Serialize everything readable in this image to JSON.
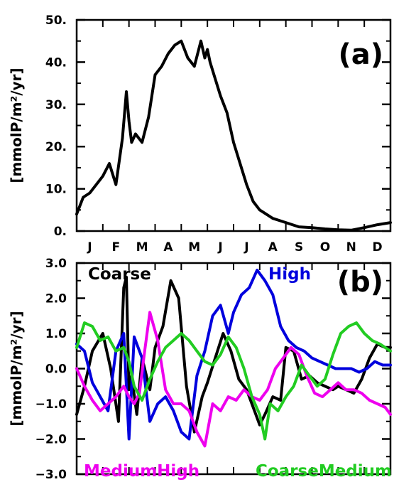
{
  "chart_data": [
    {
      "type": "line",
      "panel_label": "(a)",
      "ylabel": "[mmolP/m²/yr]",
      "xlabel": "",
      "categories": [
        "J",
        "F",
        "M",
        "A",
        "M",
        "J",
        "J",
        "A",
        "S",
        "O",
        "N",
        "D"
      ],
      "yticks": [
        "0.",
        "10.",
        "20.",
        "30.",
        "40.",
        "50."
      ],
      "ylim": [
        0,
        50
      ],
      "xlim": [
        0,
        12
      ],
      "grid": false,
      "series": [
        {
          "color": "#000000",
          "x": [
            0,
            0.25,
            0.5,
            0.75,
            1,
            1.25,
            1.5,
            1.75,
            1.9,
            2.0,
            2.1,
            2.25,
            2.5,
            2.75,
            3,
            3.25,
            3.5,
            3.75,
            4,
            4.25,
            4.5,
            4.75,
            4.9,
            5.0,
            5.1,
            5.25,
            5.5,
            5.75,
            6,
            6.25,
            6.5,
            6.75,
            7,
            7.25,
            7.5,
            7.75,
            8,
            8.5,
            9,
            9.5,
            10,
            10.5,
            11,
            11.5,
            12
          ],
          "values": [
            4,
            8,
            9,
            11,
            13,
            16,
            11,
            22,
            33,
            26,
            21,
            23,
            21,
            27,
            37,
            39,
            42,
            44,
            45,
            41,
            39,
            45,
            41,
            43,
            40,
            37,
            32,
            28,
            21,
            16,
            11,
            7,
            5,
            4,
            3,
            2.5,
            2,
            1,
            0.8,
            0.5,
            0.3,
            0.2,
            0.8,
            1.5,
            2
          ]
        }
      ]
    },
    {
      "type": "line",
      "panel_label": "(b)",
      "ylabel": "[mmolP/m²/yr]",
      "xlabel": "",
      "categories": [
        "J",
        "F",
        "M",
        "A",
        "M",
        "J",
        "J",
        "A",
        "S",
        "O",
        "N",
        "D"
      ],
      "yticks": [
        "−3.0",
        "−2.0",
        "−1.0",
        "0.0",
        "1.0",
        "2.0",
        "3.0"
      ],
      "ylim": [
        -3,
        3
      ],
      "xlim": [
        0,
        12
      ],
      "grid": false,
      "series": [
        {
          "name": "Coarse",
          "color": "#000000",
          "x": [
            0,
            0.3,
            0.6,
            1,
            1.3,
            1.6,
            1.8,
            1.9,
            2.0,
            2.1,
            2.3,
            2.5,
            2.8,
            3,
            3.3,
            3.6,
            3.9,
            4.2,
            4.5,
            4.8,
            5,
            5.3,
            5.6,
            5.9,
            6.2,
            6.5,
            6.8,
            7.0,
            7.2,
            7.5,
            7.8,
            8,
            8.3,
            8.6,
            8.9,
            9.2,
            9.5,
            9.8,
            10,
            10.3,
            10.6,
            10.9,
            11.2,
            11.5,
            11.8,
            12
          ],
          "values": [
            -1.3,
            -0.5,
            0.5,
            1.0,
            0,
            -1.5,
            2.3,
            2.6,
            -0.6,
            -0.2,
            -1.3,
            0.3,
            -0.6,
            0.6,
            1.2,
            2.5,
            2.0,
            -0.5,
            -1.8,
            -0.8,
            -0.4,
            0.3,
            1.0,
            0.5,
            -0.3,
            -0.6,
            -1.2,
            -1.6,
            -1.3,
            -0.8,
            -0.9,
            0.6,
            0.5,
            -0.3,
            -0.2,
            -0.4,
            -0.5,
            -0.6,
            -0.5,
            -0.6,
            -0.7,
            -0.3,
            0.3,
            0.7,
            0.6,
            0.6
          ]
        },
        {
          "name": "High",
          "color": "#0000dd",
          "x": [
            0,
            0.3,
            0.6,
            0.9,
            1.2,
            1.5,
            1.8,
            2.0,
            2.2,
            2.5,
            2.8,
            3.1,
            3.4,
            3.7,
            4.0,
            4.3,
            4.6,
            4.9,
            5.2,
            5.5,
            5.8,
            6.0,
            6.3,
            6.6,
            6.9,
            7.2,
            7.5,
            7.8,
            8.1,
            8.4,
            8.7,
            9.0,
            9.3,
            9.6,
            9.9,
            10.2,
            10.5,
            10.8,
            11.1,
            11.4,
            11.7,
            12
          ],
          "values": [
            0.7,
            0.5,
            -0.4,
            -0.8,
            -1.2,
            0.5,
            1.0,
            -2.0,
            0.9,
            0.3,
            -1.5,
            -1.0,
            -0.8,
            -1.2,
            -1.8,
            -2.0,
            -0.2,
            0.5,
            1.5,
            1.8,
            1.0,
            1.6,
            2.1,
            2.3,
            2.8,
            2.5,
            2.1,
            1.2,
            0.8,
            0.6,
            0.5,
            0.3,
            0.2,
            0.1,
            0.0,
            0.0,
            0.0,
            -0.1,
            0.0,
            0.2,
            0.1,
            0.1
          ]
        },
        {
          "name": "MediumHigh",
          "color": "#ee00ee",
          "x": [
            0,
            0.3,
            0.6,
            0.9,
            1.2,
            1.5,
            1.8,
            2.0,
            2.2,
            2.4,
            2.6,
            2.8,
            3.1,
            3.4,
            3.7,
            4.0,
            4.3,
            4.6,
            4.9,
            5.2,
            5.5,
            5.8,
            6.1,
            6.4,
            6.7,
            7.0,
            7.3,
            7.6,
            7.9,
            8.2,
            8.5,
            8.8,
            9.1,
            9.4,
            9.7,
            10,
            10.3,
            10.6,
            10.9,
            11.2,
            11.5,
            11.8,
            12
          ],
          "values": [
            0,
            -0.5,
            -0.9,
            -1.2,
            -1.0,
            -0.8,
            -0.5,
            -0.8,
            -1.0,
            -0.7,
            0.5,
            1.6,
            0.8,
            -0.6,
            -1.0,
            -1.0,
            -1.2,
            -1.8,
            -2.2,
            -1.0,
            -1.2,
            -0.8,
            -0.9,
            -0.6,
            -0.8,
            -0.9,
            -0.6,
            0,
            0.3,
            0.6,
            0.4,
            -0.2,
            -0.7,
            -0.8,
            -0.6,
            -0.4,
            -0.6,
            -0.6,
            -0.7,
            -0.9,
            -1.0,
            -1.1,
            -1.3
          ]
        },
        {
          "name": "CoarseMedium",
          "color": "#22cc22",
          "x": [
            0,
            0.3,
            0.6,
            0.9,
            1.2,
            1.5,
            1.8,
            2.0,
            2.2,
            2.5,
            2.8,
            3.1,
            3.4,
            3.7,
            4.0,
            4.3,
            4.6,
            4.9,
            5.2,
            5.5,
            5.8,
            6.1,
            6.4,
            6.7,
            7.0,
            7.2,
            7.4,
            7.7,
            8.0,
            8.3,
            8.6,
            8.9,
            9.2,
            9.5,
            9.8,
            10.1,
            10.4,
            10.7,
            11,
            11.3,
            11.6,
            12
          ],
          "values": [
            0.6,
            1.3,
            1.2,
            0.8,
            0.9,
            0.5,
            0.6,
            0.2,
            -0.5,
            -0.9,
            -0.3,
            0.2,
            0.6,
            0.8,
            1.0,
            0.8,
            0.5,
            0.2,
            0.1,
            0.4,
            0.9,
            0.6,
            0.0,
            -0.8,
            -1.3,
            -2.0,
            -1.0,
            -1.2,
            -0.8,
            -0.5,
            0.1,
            -0.2,
            -0.5,
            -0.3,
            0.4,
            1.0,
            1.2,
            1.3,
            1.0,
            0.8,
            0.7,
            0.5
          ]
        }
      ]
    }
  ]
}
